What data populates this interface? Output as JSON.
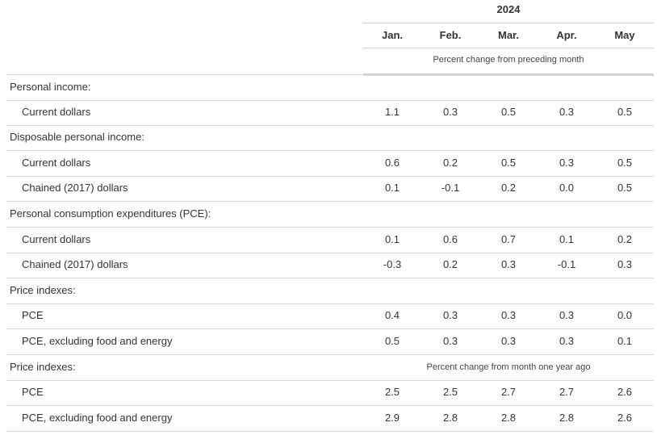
{
  "header": {
    "year": "2024",
    "months": [
      "Jan.",
      "Feb.",
      "Mar.",
      "Apr.",
      "May"
    ],
    "subheading_monthly": "Percent change from preceding month",
    "subheading_yearly": "Percent change from month one year ago"
  },
  "rows": [
    {
      "label": "Personal income:",
      "kind": "head",
      "values": []
    },
    {
      "label": "Current dollars",
      "kind": "sub",
      "values": [
        "1.1",
        "0.3",
        "0.5",
        "0.3",
        "0.5"
      ]
    },
    {
      "label": "Disposable personal income:",
      "kind": "head",
      "values": []
    },
    {
      "label": "Current dollars",
      "kind": "sub",
      "values": [
        "0.6",
        "0.2",
        "0.5",
        "0.3",
        "0.5"
      ]
    },
    {
      "label": "Chained (2017) dollars",
      "kind": "sub",
      "values": [
        "0.1",
        "-0.1",
        "0.2",
        "0.0",
        "0.5"
      ]
    },
    {
      "label": "Personal consumption expenditures (PCE):",
      "kind": "head",
      "values": []
    },
    {
      "label": "Current dollars",
      "kind": "sub",
      "values": [
        "0.1",
        "0.6",
        "0.7",
        "0.1",
        "0.2"
      ]
    },
    {
      "label": "Chained (2017) dollars",
      "kind": "sub",
      "values": [
        "-0.3",
        "0.2",
        "0.3",
        "-0.1",
        "0.3"
      ]
    },
    {
      "label": "Price indexes:",
      "kind": "head",
      "values": []
    },
    {
      "label": "PCE",
      "kind": "sub",
      "values": [
        "0.4",
        "0.3",
        "0.3",
        "0.3",
        "0.0"
      ]
    },
    {
      "label": "PCE, excluding food and energy",
      "kind": "sub",
      "values": [
        "0.5",
        "0.3",
        "0.3",
        "0.3",
        "0.1"
      ]
    },
    {
      "label": "Price indexes:",
      "kind": "head",
      "values": [],
      "note": "yearly"
    },
    {
      "label": "PCE",
      "kind": "sub",
      "values": [
        "2.5",
        "2.5",
        "2.7",
        "2.7",
        "2.6"
      ]
    },
    {
      "label": "PCE, excluding food and energy",
      "kind": "sub",
      "values": [
        "2.9",
        "2.8",
        "2.8",
        "2.8",
        "2.6"
      ]
    }
  ]
}
